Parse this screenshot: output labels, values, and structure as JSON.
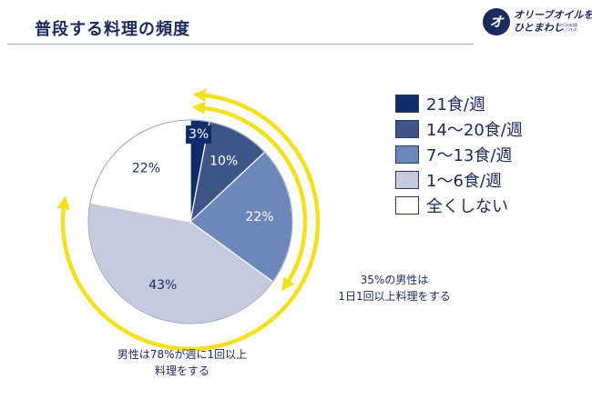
{
  "page": {
    "title": "普段する料理の頻度",
    "logo": {
      "mark": "オ",
      "line1": "オリーブオイルを",
      "line2": "ひとまわし",
      "line3": [
        "あの日の料理",
        "を、いつもの"
      ]
    }
  },
  "chart_data": {
    "type": "pie",
    "title": "普段する料理の頻度",
    "categories": [
      "21食/週",
      "14〜20食/週",
      "7〜13食/週",
      "1〜6食/週",
      "全くしない"
    ],
    "values": [
      3,
      10,
      22,
      43,
      22
    ],
    "data_labels": [
      "3%",
      "10%",
      "22%",
      "43%",
      "22%"
    ],
    "colors": [
      "#0f2d6b",
      "#3d5686",
      "#6c88ba",
      "#c3cbdd",
      "#ffffff"
    ],
    "label_colors": [
      "#ffffff",
      "#ffffff",
      "#ffffff",
      "#1b2a5e",
      "#1b2a5e"
    ],
    "legend_position": "right",
    "annotations": [
      {
        "text_lines": [
          "35%の男性は",
          "1日1回以上料理をする"
        ],
        "share_percent": 35
      },
      {
        "text_lines": [
          "男性は78%が週に1回以上",
          "料理をする"
        ],
        "share_percent": 78
      }
    ],
    "arrow_color": "#f3e11d"
  }
}
